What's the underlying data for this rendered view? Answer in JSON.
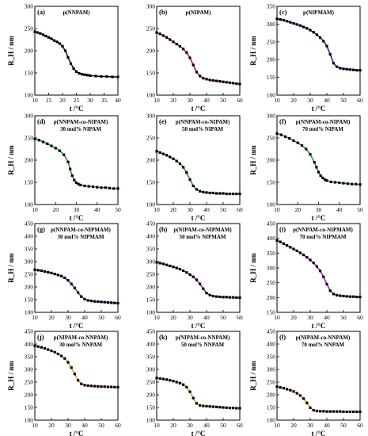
{
  "chart_data": [
    {
      "type": "scatter",
      "tag": "(a)",
      "title": "p(NNPAM)",
      "subtitle": "",
      "xlabel": "t /°C",
      "ylabel": "R_H / nm",
      "xlim": [
        10,
        40
      ],
      "ylim": [
        100,
        300
      ],
      "xticks": [
        10,
        15,
        20,
        25,
        30,
        35,
        40
      ],
      "yticks": [
        100,
        150,
        200,
        250,
        300
      ],
      "color": "#000000",
      "x": [
        10,
        11,
        12,
        13,
        14,
        15,
        16,
        17,
        18,
        19,
        20,
        21,
        22,
        23,
        24,
        25,
        26,
        27,
        28,
        29,
        30,
        32,
        34,
        36,
        38,
        40
      ],
      "y": [
        243,
        241,
        239,
        236,
        233,
        230,
        227,
        223,
        220,
        216,
        210,
        200,
        185,
        171,
        160,
        153,
        149,
        147,
        146,
        145,
        144,
        143,
        142,
        142,
        141,
        141
      ]
    },
    {
      "type": "scatter",
      "tag": "(b)",
      "title": "p(NIPAM)",
      "subtitle": "",
      "xlabel": "t /°C",
      "ylabel": "",
      "xlim": [
        10,
        60
      ],
      "ylim": [
        100,
        300
      ],
      "xticks": [
        10,
        20,
        30,
        40,
        50,
        60
      ],
      "yticks": [
        100,
        150,
        200,
        250,
        300
      ],
      "color": "#cc0000",
      "x": [
        10,
        12,
        14,
        16,
        18,
        20,
        22,
        24,
        26,
        28,
        30,
        32,
        34,
        36,
        38,
        40,
        42,
        44,
        46,
        48,
        50,
        52,
        54,
        56,
        58,
        60
      ],
      "y": [
        241,
        238,
        234,
        230,
        225,
        220,
        215,
        210,
        204,
        196,
        184,
        168,
        152,
        143,
        138,
        136,
        134,
        133,
        132,
        131,
        130,
        129,
        128,
        127,
        126,
        125
      ]
    },
    {
      "type": "scatter",
      "tag": "(c)",
      "title": "p(NIPMAM)",
      "subtitle": "",
      "xlabel": "t /°C",
      "ylabel": "R_H / nm",
      "xlim": [
        10,
        60
      ],
      "ylim": [
        100,
        350
      ],
      "xticks": [
        10,
        20,
        30,
        40,
        50,
        60
      ],
      "yticks": [
        100,
        150,
        200,
        250,
        300,
        350
      ],
      "color": "#0000cc",
      "x": [
        10,
        12,
        14,
        16,
        18,
        20,
        22,
        24,
        26,
        28,
        30,
        32,
        34,
        36,
        38,
        40,
        42,
        44,
        46,
        48,
        50,
        52,
        54,
        56,
        58,
        60
      ],
      "y": [
        315,
        313,
        311,
        308,
        305,
        302,
        299,
        296,
        292,
        288,
        283,
        277,
        270,
        262,
        252,
        238,
        215,
        190,
        180,
        176,
        174,
        173,
        172,
        171,
        170,
        170
      ]
    },
    {
      "type": "scatter",
      "tag": "(d)",
      "title": "p(NNPAM-co-NIPAM)",
      "subtitle": "30 mol% NIPAM",
      "xlabel": "t /°C",
      "ylabel": "R_H / nm",
      "xlim": [
        10,
        50
      ],
      "ylim": [
        100,
        300
      ],
      "xticks": [
        10,
        20,
        30,
        40,
        50
      ],
      "yticks": [
        100,
        150,
        200,
        250,
        300
      ],
      "color": "#009900",
      "x": [
        10,
        12,
        14,
        16,
        18,
        20,
        22,
        24,
        26,
        27,
        28,
        29,
        30,
        31,
        32,
        34,
        36,
        38,
        40,
        42,
        44,
        46,
        48,
        50
      ],
      "y": [
        248,
        245,
        241,
        237,
        232,
        227,
        221,
        212,
        196,
        180,
        165,
        155,
        149,
        146,
        144,
        142,
        141,
        140,
        139,
        138,
        138,
        137,
        136,
        136
      ]
    },
    {
      "type": "scatter",
      "tag": "(e)",
      "title": "p(NNPAM-co-NIPAM)",
      "subtitle": "50 mol% NIPAM",
      "xlabel": "t /°C",
      "ylabel": "",
      "xlim": [
        10,
        60
      ],
      "ylim": [
        100,
        300
      ],
      "xticks": [
        10,
        20,
        30,
        40,
        50,
        60
      ],
      "yticks": [
        100,
        150,
        200,
        250,
        300
      ],
      "color": "#009900",
      "x": [
        10,
        12,
        14,
        16,
        18,
        20,
        22,
        24,
        26,
        28,
        30,
        32,
        34,
        36,
        38,
        40,
        42,
        44,
        46,
        48,
        50,
        52,
        54,
        56,
        58,
        60
      ],
      "y": [
        220,
        217,
        214,
        211,
        207,
        203,
        198,
        192,
        184,
        172,
        156,
        142,
        134,
        130,
        128,
        127,
        126,
        126,
        125,
        125,
        125,
        124,
        124,
        124,
        124,
        124
      ]
    },
    {
      "type": "scatter",
      "tag": "(f)",
      "title": "p(NNPAM-co-NIPAM)",
      "subtitle": "70 mol% NIPAM",
      "xlabel": "t /°C",
      "ylabel": "R_H / nm",
      "xlim": [
        10,
        50
      ],
      "ylim": [
        100,
        300
      ],
      "xticks": [
        10,
        20,
        30,
        40,
        50
      ],
      "yticks": [
        100,
        150,
        200,
        250,
        300
      ],
      "color": "#009900",
      "x": [
        10,
        12,
        14,
        16,
        18,
        20,
        22,
        24,
        26,
        28,
        29,
        30,
        31,
        32,
        33,
        34,
        36,
        38,
        40,
        42,
        44,
        46,
        48,
        50
      ],
      "y": [
        260,
        257,
        253,
        249,
        244,
        239,
        233,
        225,
        213,
        195,
        184,
        173,
        165,
        160,
        156,
        154,
        151,
        150,
        149,
        148,
        147,
        146,
        146,
        145
      ]
    },
    {
      "type": "scatter",
      "tag": "(g)",
      "title": "p(NNPAM-co-NIPMAM)",
      "subtitle": "30 mol% NIPMAM",
      "xlabel": "t /°C",
      "ylabel": "R_H / nm",
      "xlim": [
        10,
        60
      ],
      "ylim": [
        100,
        450
      ],
      "xticks": [
        10,
        20,
        30,
        40,
        50,
        60
      ],
      "yticks": [
        100,
        150,
        200,
        250,
        300,
        350,
        400,
        450
      ],
      "color": "#9900cc",
      "x": [
        10,
        12,
        14,
        16,
        18,
        20,
        22,
        24,
        26,
        28,
        30,
        32,
        34,
        36,
        38,
        40,
        42,
        44,
        46,
        48,
        50,
        52,
        54,
        56,
        58,
        60
      ],
      "y": [
        268,
        266,
        264,
        261,
        258,
        255,
        251,
        247,
        243,
        236,
        226,
        212,
        196,
        178,
        162,
        152,
        147,
        145,
        143,
        142,
        141,
        140,
        139,
        138,
        137,
        136
      ]
    },
    {
      "type": "scatter",
      "tag": "(h)",
      "title": "p(NIPAM-co-NIPMAM)",
      "subtitle": "50 mol% NIPMAM",
      "xlabel": "t /°C",
      "ylabel": "",
      "xlim": [
        10,
        60
      ],
      "ylim": [
        100,
        450
      ],
      "xticks": [
        10,
        20,
        30,
        40,
        50,
        60
      ],
      "yticks": [
        100,
        150,
        200,
        250,
        300,
        350,
        400,
        450
      ],
      "color": "#9900cc",
      "x": [
        10,
        12,
        14,
        16,
        18,
        20,
        22,
        24,
        26,
        28,
        30,
        32,
        34,
        36,
        38,
        40,
        42,
        44,
        46,
        48,
        50,
        52,
        54,
        56,
        58,
        60
      ],
      "y": [
        297,
        294,
        291,
        287,
        283,
        279,
        275,
        270,
        264,
        257,
        249,
        240,
        228,
        212,
        193,
        176,
        168,
        164,
        162,
        161,
        160,
        160,
        159,
        159,
        158,
        158
      ]
    },
    {
      "type": "scatter",
      "tag": "(i)",
      "title": "p(NNPAM-co-NIPMAM)",
      "subtitle": "70 mol% NIPMAM",
      "xlabel": "t /°C",
      "ylabel": "R_H / nm",
      "xlim": [
        10,
        60
      ],
      "ylim": [
        150,
        450
      ],
      "xticks": [
        10,
        20,
        30,
        40,
        50,
        60
      ],
      "yticks": [
        150,
        200,
        250,
        300,
        350,
        400,
        450
      ],
      "color": "#9900cc",
      "x": [
        10,
        12,
        14,
        16,
        18,
        20,
        22,
        24,
        26,
        28,
        30,
        32,
        34,
        36,
        38,
        40,
        42,
        44,
        46,
        48,
        50,
        52,
        54,
        56,
        58,
        60
      ],
      "y": [
        393,
        388,
        382,
        376,
        370,
        364,
        358,
        351,
        344,
        336,
        327,
        317,
        305,
        290,
        270,
        245,
        223,
        212,
        208,
        206,
        205,
        204,
        203,
        203,
        202,
        202
      ]
    },
    {
      "type": "scatter",
      "tag": "(j)",
      "title": "p(NIPAM-co-NNPAM)",
      "subtitle": "30 mol% NNPAM",
      "xlabel": "t /°C",
      "ylabel": "R_H / nm",
      "xlim": [
        10,
        60
      ],
      "ylim": [
        100,
        450
      ],
      "xticks": [
        10,
        20,
        30,
        40,
        50,
        60
      ],
      "yticks": [
        100,
        150,
        200,
        250,
        300,
        350,
        400,
        450
      ],
      "color": "#ff8800",
      "x": [
        10,
        12,
        14,
        16,
        18,
        20,
        22,
        24,
        26,
        28,
        30,
        32,
        34,
        36,
        38,
        40,
        42,
        44,
        46,
        48,
        50,
        52,
        54,
        56,
        58,
        60
      ],
      "y": [
        393,
        390,
        387,
        383,
        378,
        373,
        368,
        361,
        353,
        343,
        328,
        307,
        282,
        257,
        243,
        238,
        236,
        235,
        234,
        233,
        232,
        232,
        231,
        231,
        230,
        230
      ]
    },
    {
      "type": "scatter",
      "tag": "(k)",
      "title": "p(NIPAM-co-NNPAM)",
      "subtitle": "50 mol% NNPAM",
      "xlabel": "t /°C",
      "ylabel": "",
      "xlim": [
        10,
        60
      ],
      "ylim": [
        100,
        450
      ],
      "xticks": [
        10,
        20,
        30,
        40,
        50,
        60
      ],
      "yticks": [
        100,
        150,
        200,
        250,
        300,
        350,
        400,
        450
      ],
      "color": "#ff8800",
      "x": [
        10,
        12,
        14,
        16,
        18,
        20,
        22,
        24,
        26,
        28,
        30,
        32,
        34,
        36,
        38,
        40,
        42,
        44,
        46,
        48,
        50,
        52,
        54,
        56,
        58,
        60
      ],
      "y": [
        266,
        264,
        262,
        260,
        257,
        254,
        250,
        246,
        240,
        230,
        212,
        187,
        166,
        158,
        156,
        155,
        154,
        153,
        152,
        151,
        150,
        149,
        148,
        148,
        147,
        147
      ]
    },
    {
      "type": "scatter",
      "tag": "(l)",
      "title": "p(NIPAM-co-NNPAM)",
      "subtitle": "70 mol% NNPAM",
      "xlabel": "t /°C",
      "ylabel": "R_H / nm",
      "xlim": [
        10,
        60
      ],
      "ylim": [
        100,
        450
      ],
      "xticks": [
        10,
        20,
        30,
        40,
        50,
        60
      ],
      "yticks": [
        100,
        150,
        200,
        250,
        300,
        350,
        400,
        450
      ],
      "color": "#ff8800",
      "x": [
        10,
        12,
        14,
        16,
        18,
        20,
        22,
        24,
        26,
        28,
        30,
        32,
        34,
        36,
        38,
        40,
        42,
        44,
        46,
        48,
        50,
        52,
        54,
        56,
        58,
        60
      ],
      "y": [
        232,
        229,
        226,
        222,
        218,
        213,
        206,
        197,
        185,
        168,
        149,
        139,
        136,
        135,
        135,
        134,
        134,
        134,
        134,
        134,
        133,
        133,
        133,
        133,
        133,
        133
      ]
    }
  ]
}
